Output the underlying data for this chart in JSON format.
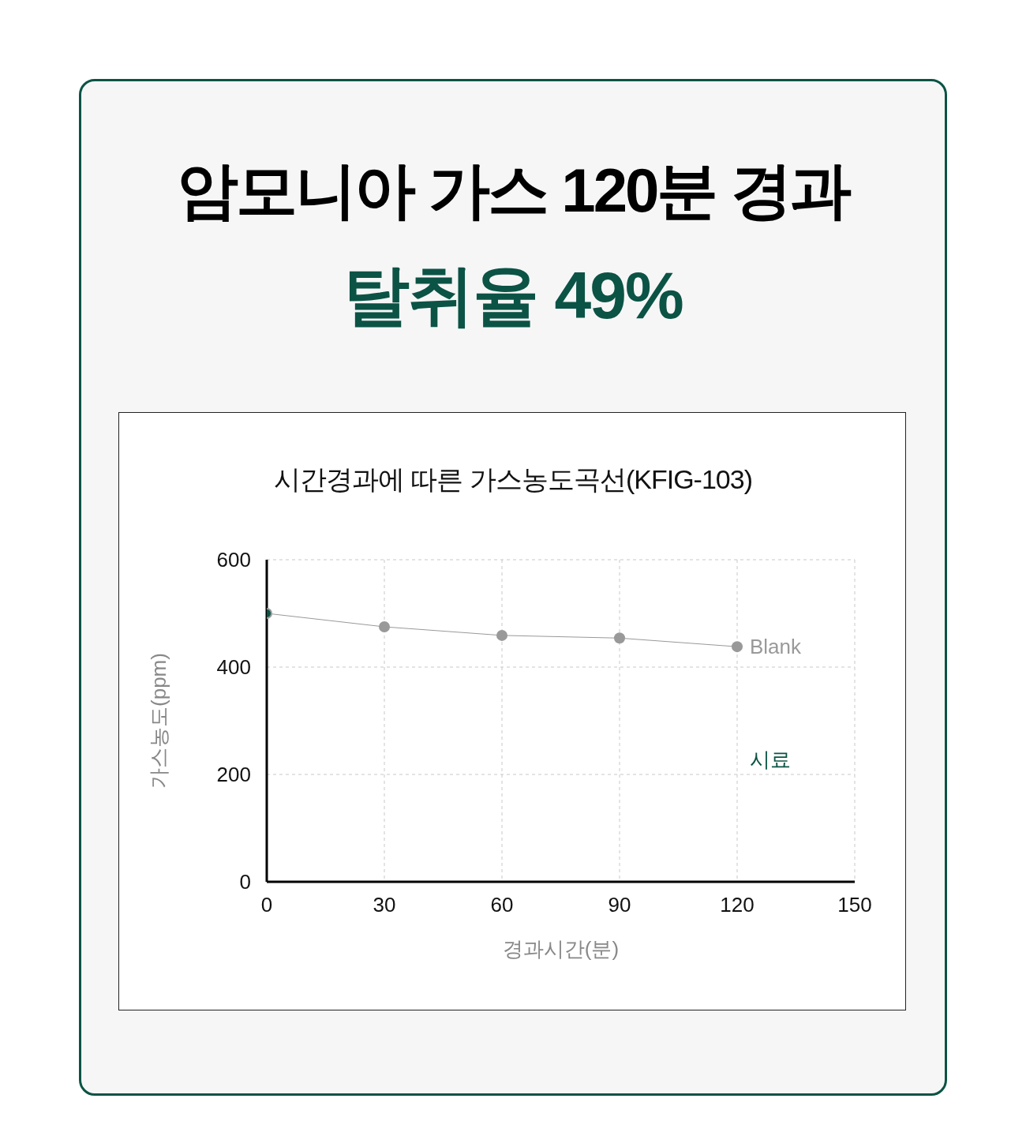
{
  "chart_data": {
    "type": "line",
    "title": "암모니아 가스 120분 경과",
    "subtitle": "탈취율 49%",
    "annotations": [
      "시간경과에 따른 가스농도곡선(KFIG-103)"
    ],
    "xlabel": "경과시간(분)",
    "ylabel": "가스농도(ppm)",
    "x": [
      0,
      30,
      60,
      90,
      120
    ],
    "series": [
      {
        "name": "Blank",
        "color": "#999999",
        "values": [
          500,
          475,
          459,
          454,
          438
        ]
      },
      {
        "name": "시료",
        "color": "#0b5345",
        "values": [
          500,
          null,
          null,
          null,
          null
        ]
      }
    ],
    "xlim": [
      0,
      150
    ],
    "xticks": [
      0,
      30,
      60,
      90,
      120,
      150
    ],
    "ylim": [
      0,
      600
    ],
    "yticks": [
      0,
      200,
      400,
      600
    ],
    "grid": true,
    "legend": false,
    "marker": "circle",
    "line_style": "solid"
  }
}
